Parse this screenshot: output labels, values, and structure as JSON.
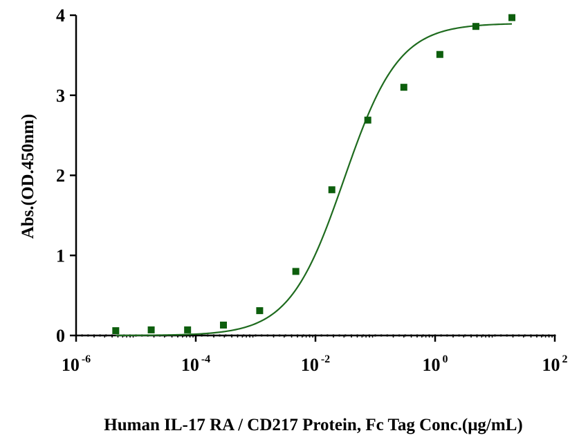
{
  "chart_data": {
    "type": "scatter",
    "title": "",
    "xlabel": "Human IL-17 RA / CD217 Protein, Fc Tag Conc.(μg/mL)",
    "ylabel": "Abs.(OD.450nm)",
    "xscale": "log",
    "xlim": [
      1e-06,
      100
    ],
    "ylim": [
      0,
      4
    ],
    "x_ticks": [
      {
        "base": "10",
        "exp": "-6",
        "value": 1e-06
      },
      {
        "base": "10",
        "exp": "-4",
        "value": 0.0001
      },
      {
        "base": "10",
        "exp": "-2",
        "value": 0.01
      },
      {
        "base": "10",
        "exp": "0",
        "value": 1
      },
      {
        "base": "10",
        "exp": "2",
        "value": 100
      }
    ],
    "y_ticks": [
      "0",
      "1",
      "2",
      "3",
      "4"
    ],
    "grid": false,
    "legend": "none",
    "series": [
      {
        "marker": "square",
        "color": "#0d5e0d",
        "points": [
          {
            "x": 4.6e-06,
            "y": 0.06
          },
          {
            "x": 1.8e-05,
            "y": 0.07
          },
          {
            "x": 7.3e-05,
            "y": 0.07
          },
          {
            "x": 0.00029,
            "y": 0.13
          },
          {
            "x": 0.00117,
            "y": 0.31
          },
          {
            "x": 0.0047,
            "y": 0.8
          },
          {
            "x": 0.0188,
            "y": 1.82
          },
          {
            "x": 0.075,
            "y": 2.69
          },
          {
            "x": 0.3,
            "y": 3.1
          },
          {
            "x": 1.2,
            "y": 3.51
          },
          {
            "x": 4.8,
            "y": 3.86
          },
          {
            "x": 19.2,
            "y": 3.97
          }
        ]
      }
    ],
    "fit_curve": {
      "type": "4PL",
      "bottom": 0.0,
      "top": 3.9,
      "ec50": 0.03,
      "hill": 0.95,
      "color": "#1e6b1e"
    },
    "axis_color": "#000000"
  }
}
